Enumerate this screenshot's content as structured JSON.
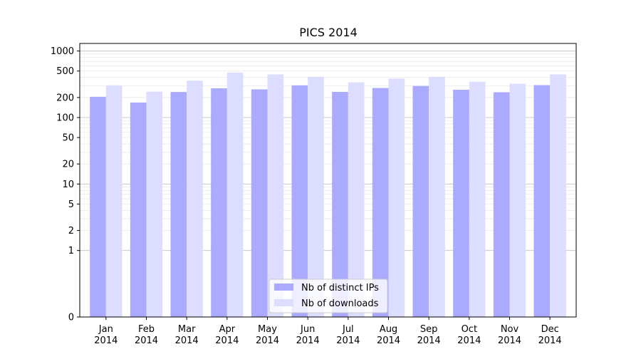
{
  "chart_data": {
    "type": "bar",
    "title": "PICS 2014",
    "xlabel": "",
    "ylabel": "",
    "yscale": "symlog",
    "ylim": [
      0,
      1300
    ],
    "yticks": [
      0,
      1,
      2,
      5,
      10,
      20,
      50,
      100,
      200,
      500,
      1000
    ],
    "ytick_labels": [
      "0",
      "1",
      "2",
      "5",
      "10",
      "20",
      "50",
      "100",
      "200",
      "500",
      "1000"
    ],
    "categories": [
      [
        "Jan",
        "2014"
      ],
      [
        "Feb",
        "2014"
      ],
      [
        "Mar",
        "2014"
      ],
      [
        "Apr",
        "2014"
      ],
      [
        "May",
        "2014"
      ],
      [
        "Jun",
        "2014"
      ],
      [
        "Jul",
        "2014"
      ],
      [
        "Aug",
        "2014"
      ],
      [
        "Sep",
        "2014"
      ],
      [
        "Oct",
        "2014"
      ],
      [
        "Nov",
        "2014"
      ],
      [
        "Dec",
        "2014"
      ]
    ],
    "series": [
      {
        "name": "Nb of distinct IPs",
        "color": "#aaaaff",
        "values": [
          205,
          168,
          242,
          275,
          265,
          305,
          243,
          278,
          298,
          262,
          240,
          307
        ]
      },
      {
        "name": "Nb of downloads",
        "color": "#ddddff",
        "values": [
          305,
          245,
          358,
          475,
          445,
          410,
          338,
          385,
          410,
          345,
          322,
          445
        ]
      }
    ],
    "grid": true,
    "legend_position": "bottom-center"
  }
}
